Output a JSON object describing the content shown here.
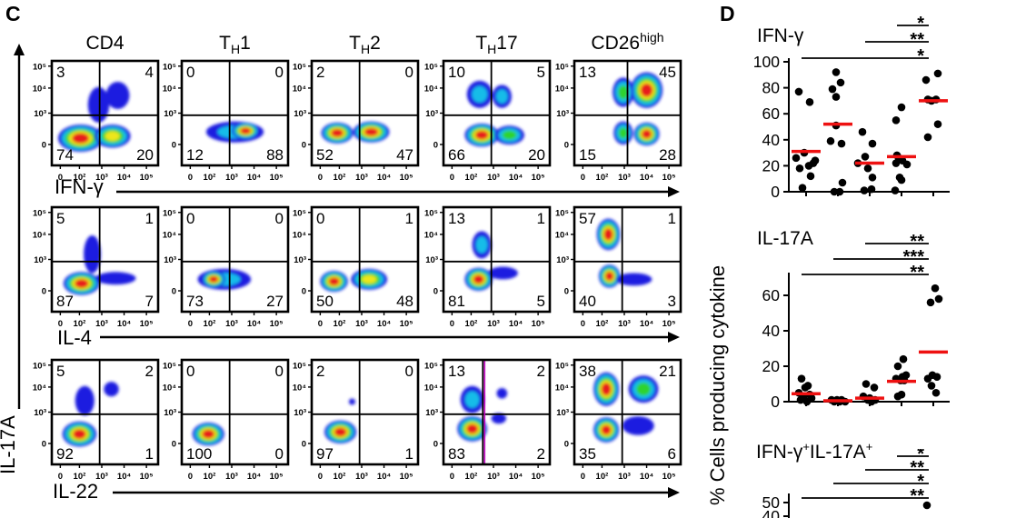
{
  "panel_c": {
    "label": "C",
    "y_axis_label": "IL-17A",
    "x_tick_labels": [
      "0",
      "10²",
      "10³",
      "10⁴",
      "10⁵"
    ],
    "y_tick_labels": [
      "10⁵",
      "10⁴",
      "10³",
      "0"
    ],
    "columns": [
      {
        "pre": "CD4",
        "sub": "",
        "post": "",
        "sup": ""
      },
      {
        "pre": "T",
        "sub": "H",
        "post": "1",
        "sup": ""
      },
      {
        "pre": "T",
        "sub": "H",
        "post": "2",
        "sup": ""
      },
      {
        "pre": "T",
        "sub": "H",
        "post": "17",
        "sup": ""
      },
      {
        "pre": "CD26",
        "sub": "",
        "post": "",
        "sup": "high"
      }
    ],
    "rows": [
      {
        "x_label": "IFN-γ",
        "plots": [
          {
            "q": [
              3,
              4,
              74,
              20
            ],
            "pops": [
              [
                0.27,
                0.74,
                0.21,
                0.13,
                5
              ],
              [
                0.57,
                0.72,
                0.17,
                0.11,
                4
              ],
              [
                0.44,
                0.42,
                0.1,
                0.17,
                1
              ],
              [
                0.62,
                0.33,
                0.11,
                0.13,
                1
              ]
            ]
          },
          {
            "q": [
              0,
              0,
              12,
              88
            ],
            "pops": [
              [
                0.5,
                0.68,
                0.27,
                0.1,
                2
              ],
              [
                0.6,
                0.67,
                0.13,
                0.08,
                5
              ]
            ]
          },
          {
            "q": [
              2,
              0,
              52,
              47
            ],
            "pops": [
              [
                0.24,
                0.69,
                0.15,
                0.1,
                5
              ],
              [
                0.56,
                0.68,
                0.17,
                0.1,
                5
              ]
            ]
          },
          {
            "q": [
              10,
              5,
              66,
              20
            ],
            "pops": [
              [
                0.36,
                0.71,
                0.16,
                0.11,
                5
              ],
              [
                0.62,
                0.71,
                0.14,
                0.09,
                3
              ],
              [
                0.34,
                0.32,
                0.12,
                0.13,
                2
              ],
              [
                0.55,
                0.34,
                0.09,
                0.11,
                2
              ]
            ]
          },
          {
            "q": [
              13,
              45,
              15,
              28
            ],
            "div_x": 0.5,
            "pops": [
              [
                0.68,
                0.28,
                0.15,
                0.17,
                5
              ],
              [
                0.46,
                0.3,
                0.1,
                0.14,
                3
              ],
              [
                0.46,
                0.69,
                0.09,
                0.11,
                3
              ],
              [
                0.68,
                0.7,
                0.12,
                0.11,
                5
              ]
            ]
          }
        ]
      },
      {
        "x_label": "IL-4",
        "plots": [
          {
            "q": [
              5,
              1,
              87,
              7
            ],
            "pops": [
              [
                0.28,
                0.73,
                0.17,
                0.11,
                5
              ],
              [
                0.38,
                0.45,
                0.08,
                0.18,
                1
              ],
              [
                0.6,
                0.68,
                0.19,
                0.06,
                1
              ]
            ]
          },
          {
            "q": [
              0,
              0,
              73,
              27
            ],
            "pops": [
              [
                0.4,
                0.69,
                0.25,
                0.1,
                2
              ],
              [
                0.3,
                0.69,
                0.11,
                0.08,
                5
              ]
            ]
          },
          {
            "q": [
              0,
              1,
              50,
              48
            ],
            "pops": [
              [
                0.21,
                0.71,
                0.13,
                0.1,
                5
              ],
              [
                0.54,
                0.69,
                0.17,
                0.1,
                4
              ]
            ]
          },
          {
            "q": [
              13,
              1,
              81,
              5
            ],
            "pops": [
              [
                0.33,
                0.69,
                0.13,
                0.11,
                5
              ],
              [
                0.36,
                0.36,
                0.09,
                0.13,
                2
              ],
              [
                0.56,
                0.63,
                0.14,
                0.06,
                1
              ]
            ]
          },
          {
            "q": [
              57,
              1,
              40,
              3
            ],
            "pops": [
              [
                0.32,
                0.26,
                0.11,
                0.15,
                5
              ],
              [
                0.33,
                0.66,
                0.1,
                0.11,
                5
              ],
              [
                0.56,
                0.69,
                0.17,
                0.06,
                1
              ]
            ]
          }
        ]
      },
      {
        "x_label": "IL-22",
        "plots": [
          {
            "q": [
              5,
              2,
              92,
              1
            ],
            "pops": [
              [
                0.26,
                0.71,
                0.16,
                0.12,
                5
              ],
              [
                0.31,
                0.39,
                0.09,
                0.14,
                1
              ],
              [
                0.56,
                0.28,
                0.07,
                0.07,
                1
              ]
            ]
          },
          {
            "q": [
              0,
              0,
              100,
              0
            ],
            "pops": [
              [
                0.25,
                0.71,
                0.15,
                0.11,
                5
              ]
            ]
          },
          {
            "q": [
              2,
              0,
              97,
              1
            ],
            "pops": [
              [
                0.27,
                0.69,
                0.15,
                0.11,
                5
              ],
              [
                0.38,
                0.4,
                0.03,
                0.03,
                1
              ]
            ]
          },
          {
            "q": [
              13,
              2,
              83,
              2
            ],
            "div_x": 0.37,
            "gate_x": 0.37,
            "pops": [
              [
                0.27,
                0.66,
                0.14,
                0.12,
                5
              ],
              [
                0.27,
                0.38,
                0.11,
                0.13,
                2
              ],
              [
                0.55,
                0.32,
                0.05,
                0.05,
                1
              ],
              [
                0.52,
                0.56,
                0.07,
                0.05,
                1
              ]
            ]
          },
          {
            "q": [
              38,
              21,
              35,
              6
            ],
            "pops": [
              [
                0.3,
                0.28,
                0.12,
                0.16,
                5
              ],
              [
                0.65,
                0.28,
                0.14,
                0.13,
                3
              ],
              [
                0.3,
                0.67,
                0.12,
                0.12,
                5
              ],
              [
                0.6,
                0.63,
                0.15,
                0.09,
                1
              ]
            ]
          }
        ]
      }
    ]
  },
  "panel_d": {
    "label": "D",
    "y_axis_label": "% Cells producing cytokine"
  },
  "chart_data": [
    {
      "type": "scatter",
      "title": "IFN-γ",
      "title_parts": {
        "p1": "IFN-γ",
        "s1": "",
        "p2": "",
        "s2": ""
      },
      "groups": [
        "CD4",
        "TH1",
        "TH2",
        "TH17",
        "CD26high"
      ],
      "ylim": [
        0,
        100
      ],
      "yticks": [
        0,
        20,
        40,
        60,
        80,
        100
      ],
      "points": [
        [
          [
            -8,
            77
          ],
          [
            4,
            69
          ],
          [
            -2,
            30
          ],
          [
            -11,
            26
          ],
          [
            10,
            24
          ],
          [
            8,
            22
          ],
          [
            3,
            20
          ],
          [
            -7,
            18
          ],
          [
            5,
            12
          ],
          [
            -4,
            3
          ]
        ],
        [
          [
            -2,
            92
          ],
          [
            3,
            84
          ],
          [
            -6,
            79
          ],
          [
            -2,
            73
          ],
          [
            -2,
            51
          ],
          [
            -8,
            39
          ],
          [
            4,
            37
          ],
          [
            5,
            7
          ],
          [
            -4,
            0
          ],
          [
            2,
            0
          ]
        ],
        [
          [
            -8,
            46
          ],
          [
            3,
            37
          ],
          [
            -5,
            27
          ],
          [
            -13,
            22
          ],
          [
            -2,
            18
          ],
          [
            3,
            11
          ],
          [
            2,
            2
          ],
          [
            -6,
            1
          ]
        ],
        [
          [
            0,
            65
          ],
          [
            -6,
            55
          ],
          [
            -5,
            28
          ],
          [
            -3,
            26
          ],
          [
            1,
            24
          ],
          [
            -6,
            22
          ],
          [
            6,
            21
          ],
          [
            -2,
            11
          ],
          [
            0,
            9
          ],
          [
            -7,
            1
          ]
        ],
        [
          [
            5,
            91
          ],
          [
            -8,
            86
          ],
          [
            -6,
            71
          ],
          [
            3,
            71
          ],
          [
            -2,
            70
          ],
          [
            5,
            52
          ],
          [
            -6,
            42
          ]
        ]
      ],
      "medians": [
        31,
        52,
        22,
        27,
        70
      ],
      "sig_bars": [
        {
          "from": 4,
          "to": 5,
          "label": "*"
        },
        {
          "from": 3,
          "to": 5,
          "label": "**"
        },
        {
          "from": 1,
          "to": 5,
          "label": "*"
        }
      ]
    },
    {
      "type": "scatter",
      "title": "IL-17A",
      "title_parts": {
        "p1": "IL-17A",
        "s1": "",
        "p2": "",
        "s2": ""
      },
      "groups": [
        "CD4",
        "TH1",
        "TH2",
        "TH17",
        "CD26high"
      ],
      "ylim": [
        0,
        70
      ],
      "yticks": [
        0,
        20,
        40,
        60
      ],
      "points": [
        [
          [
            -5,
            13
          ],
          [
            2,
            9
          ],
          [
            -1,
            8
          ],
          [
            -8,
            5
          ],
          [
            4,
            4
          ],
          [
            -3,
            2
          ],
          [
            6,
            2
          ],
          [
            -6,
            1
          ],
          [
            1,
            0
          ]
        ],
        [
          [
            -7,
            1
          ],
          [
            -1,
            1
          ],
          [
            4,
            1
          ],
          [
            -4,
            0
          ],
          [
            2,
            0
          ],
          [
            8,
            0
          ]
        ],
        [
          [
            -4,
            10
          ],
          [
            5,
            8
          ],
          [
            -7,
            3
          ],
          [
            0,
            2
          ],
          [
            -2,
            1
          ],
          [
            6,
            1
          ],
          [
            2,
            0
          ]
        ],
        [
          [
            2,
            24
          ],
          [
            -4,
            20
          ],
          [
            5,
            15
          ],
          [
            1,
            14
          ],
          [
            -6,
            13
          ],
          [
            -1,
            12
          ],
          [
            3,
            12
          ],
          [
            0,
            4
          ],
          [
            -4,
            3
          ]
        ],
        [
          [
            2,
            64
          ],
          [
            6,
            58
          ],
          [
            -3,
            56
          ],
          [
            -1,
            15
          ],
          [
            4,
            14
          ],
          [
            -6,
            13
          ],
          [
            -2,
            9
          ],
          [
            3,
            5
          ]
        ]
      ],
      "medians": [
        4.5,
        0.5,
        2,
        11.5,
        28
      ],
      "sig_bars": [
        {
          "from": 3,
          "to": 5,
          "label": "**"
        },
        {
          "from": 2,
          "to": 5,
          "label": "***"
        },
        {
          "from": 1,
          "to": 5,
          "label": "**"
        }
      ]
    },
    {
      "type": "scatter",
      "title": "IFN-γ+IL-17A+",
      "title_parts": {
        "p1": "IFN-γ",
        "s1": "+",
        "p2": "IL-17A",
        "s2": "+"
      },
      "groups": [
        "CD4",
        "TH1",
        "TH2",
        "TH17",
        "CD26high"
      ],
      "ylim": [
        40,
        50
      ],
      "yticks": [
        50,
        40
      ],
      "points": [
        [],
        [],
        [],
        [],
        [
          [
            -7,
            48
          ]
        ]
      ],
      "medians": [],
      "sig_bars": [
        {
          "from": 4,
          "to": 5,
          "label": "*"
        },
        {
          "from": 3,
          "to": 5,
          "label": "**"
        },
        {
          "from": 2,
          "to": 5,
          "label": "*"
        },
        {
          "from": 1,
          "to": 5,
          "label": "**"
        }
      ]
    }
  ],
  "colors": {
    "density_scale": [
      "#1A1AE0",
      "#19BCE8",
      "#2FD32F",
      "#EDE61F",
      "#E81E1E"
    ],
    "median_line": "#EE1111",
    "gate_line": "#C000C0",
    "ink": "#000000"
  }
}
